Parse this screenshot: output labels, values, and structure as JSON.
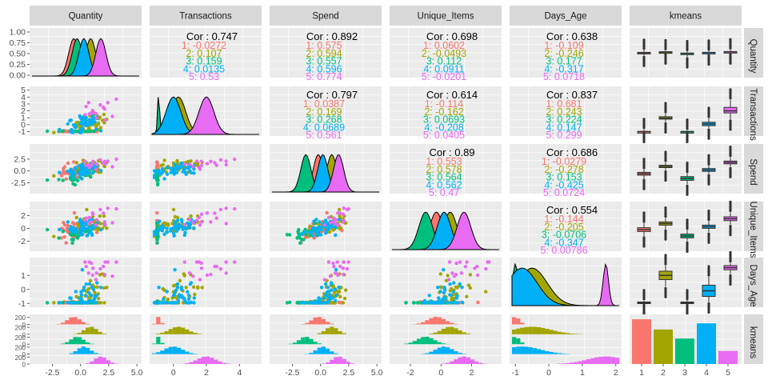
{
  "chart_data": {
    "type": "scatter-matrix",
    "variables": [
      "Quantity",
      "Transactions",
      "Spend",
      "Unique_Items",
      "Days_Age",
      "kmeans"
    ],
    "clusters": [
      "1",
      "2",
      "3",
      "4",
      "5"
    ],
    "colors": {
      "1": "#F8766D",
      "2": "#A3A500",
      "3": "#00BF7D",
      "4": "#00B0F6",
      "5": "#E76BF3"
    },
    "panel_background": "#EBEBEB",
    "strip_background": "#D9D9D9",
    "x_ticks": {
      "Quantity": [
        "-2.5",
        "0.0",
        "2.5",
        "5.0"
      ],
      "Transactions": [
        "0",
        "2",
        "4"
      ],
      "Spend": [
        "-2.5",
        "0.0",
        "2.5",
        "5.0"
      ],
      "Unique_Items": [
        "-2",
        "0",
        "2"
      ],
      "Days_Age": [
        "-1",
        "0",
        "1",
        "2"
      ],
      "kmeans": [
        "1",
        "2",
        "3",
        "4",
        "5"
      ]
    },
    "y_ticks": {
      "Quantity": [
        "0.00",
        "0.25",
        "0.50",
        "0.75",
        "1.00"
      ],
      "Transactions": [
        "-1",
        "0",
        "1",
        "2",
        "3",
        "4",
        "5"
      ],
      "Spend": [
        "-2.5",
        "0.0",
        "2.5"
      ],
      "Unique_Items": [
        "-2",
        "0",
        "2"
      ],
      "Days_Age": [
        "-1",
        "0",
        "1"
      ],
      "kmeans": [
        "0",
        "200",
        "0",
        "200",
        "0",
        "200",
        "0",
        "200",
        "0",
        "200"
      ]
    },
    "correlations": [
      {
        "row": "Quantity",
        "col": "Transactions",
        "cor": "Cor : 0.747",
        "groups": [
          "1: -0.0272",
          "2: 0.107",
          "3: 0.159",
          "4: 0.0135",
          "5: 0.53"
        ]
      },
      {
        "row": "Quantity",
        "col": "Spend",
        "cor": "Cor : 0.892",
        "groups": [
          "1: 0.575",
          "2: 0.594",
          "3: 0.557",
          "4: 0.596",
          "5: 0.774"
        ]
      },
      {
        "row": "Quantity",
        "col": "Unique_Items",
        "cor": "Cor : 0.698",
        "groups": [
          "1: 0.0602",
          "2: -0.0493",
          "3: 0.112",
          "4: 0.0911",
          "5: -0.0201"
        ]
      },
      {
        "row": "Quantity",
        "col": "Days_Age",
        "cor": "Cor : 0.638",
        "groups": [
          "1: -0.109",
          "2: -0.246",
          "3: 0.177",
          "4: -0.317",
          "5: 0.0718"
        ]
      },
      {
        "row": "Transactions",
        "col": "Spend",
        "cor": "Cor : 0.797",
        "groups": [
          "1: 0.0387",
          "2: 0.169",
          "3: 0.268",
          "4: 0.0689",
          "5: 0.561"
        ]
      },
      {
        "row": "Transactions",
        "col": "Unique_Items",
        "cor": "Cor : 0.614",
        "groups": [
          "1: -0.114",
          "2: -0.162",
          "3: 0.0693",
          "4: -0.208",
          "5: 0.0405"
        ]
      },
      {
        "row": "Transactions",
        "col": "Days_Age",
        "cor": "Cor : 0.837",
        "groups": [
          "1: 0.681",
          "2: 0.243",
          "3: 0.224",
          "4: 0.147",
          "5: 0.299"
        ]
      },
      {
        "row": "Spend",
        "col": "Unique_Items",
        "cor": "Cor : 0.89",
        "groups": [
          "1: 0.553",
          "2: 0.578",
          "3: 0.564",
          "4: 0.562",
          "5: 0.47"
        ]
      },
      {
        "row": "Spend",
        "col": "Days_Age",
        "cor": "Cor : 0.686",
        "groups": [
          "1: -0.0279",
          "2: -0.278",
          "3: 0.153",
          "4: -0.425",
          "5: 0.0724"
        ]
      },
      {
        "row": "Unique_Items",
        "col": "Days_Age",
        "cor": "Cor : 0.554",
        "groups": [
          "1: -0.144",
          "2: -0.205",
          "3: -0.0706",
          "4: -0.347",
          "5: 0.00786"
        ]
      }
    ],
    "cluster_counts": {
      "1": 790,
      "2": 610,
      "3": 450,
      "4": 720,
      "5": 230
    },
    "density_peaks": {
      "Quantity": [
        -0.6,
        0.9,
        -0.3,
        0.3,
        1.8
      ],
      "Spend": [
        -0.2,
        1.0,
        -1.3,
        0.2,
        1.6
      ],
      "Unique_Items": [
        -0.3,
        0.6,
        -1.0,
        0.2,
        1.5
      ],
      "Days_Age": [
        -1.0,
        -0.5,
        -1.0,
        -0.8,
        1.7
      ],
      "Transactions": [
        -0.9,
        0.3,
        -0.9,
        0.0,
        2.0
      ]
    },
    "box_stats": {
      "Quantity": [
        [
          -0.1,
          0.35,
          0.45,
          0.55,
          1.0
        ],
        [
          0.4,
          0.55,
          0.6,
          0.68,
          0.9
        ],
        [
          -0.4,
          0.2,
          0.33,
          0.4,
          0.7
        ],
        [
          0.2,
          0.45,
          0.5,
          0.55,
          0.8
        ],
        [
          0.4,
          0.6,
          0.66,
          0.72,
          1.1
        ]
      ],
      "Transactions": [
        [
          -1.0,
          -1.0,
          -1.0,
          -1.0,
          -0.7
        ],
        [
          0.4,
          0.8,
          0.95,
          1.15,
          1.6
        ],
        [
          -1.0,
          -1.0,
          -1.0,
          -1.0,
          -0.8
        ],
        [
          -0.5,
          -0.15,
          0.1,
          0.35,
          0.9
        ],
        [
          0.8,
          1.7,
          2.0,
          2.5,
          3.6
        ]
      ],
      "Spend": [
        [
          -1.6,
          -0.9,
          -0.6,
          -0.3,
          0.3
        ],
        [
          0.2,
          0.7,
          0.95,
          1.2,
          1.8
        ],
        [
          -2.8,
          -2.0,
          -1.6,
          -1.2,
          -0.5
        ],
        [
          -0.6,
          -0.1,
          0.2,
          0.5,
          1.1
        ],
        [
          0.9,
          1.5,
          1.8,
          2.1,
          2.9
        ]
      ],
      "Unique_Items": [
        [
          -1.2,
          -0.5,
          -0.2,
          0.1,
          0.8
        ],
        [
          -0.1,
          0.5,
          0.75,
          1.0,
          1.6
        ],
        [
          -2.0,
          -1.5,
          -1.2,
          -0.9,
          -0.3
        ],
        [
          -0.6,
          0.0,
          0.25,
          0.5,
          1.1
        ],
        [
          0.6,
          1.2,
          1.5,
          1.8,
          2.5
        ]
      ],
      "Days_Age": [
        [
          -1.0,
          -0.98,
          -0.95,
          -0.9,
          -0.8
        ],
        [
          0.2,
          0.7,
          1.0,
          1.3,
          1.7
        ],
        [
          -1.0,
          -0.98,
          -0.95,
          -0.9,
          -0.8
        ],
        [
          -0.9,
          -0.5,
          -0.1,
          0.3,
          0.9
        ],
        [
          1.1,
          1.4,
          1.55,
          1.7,
          1.9
        ]
      ]
    }
  }
}
